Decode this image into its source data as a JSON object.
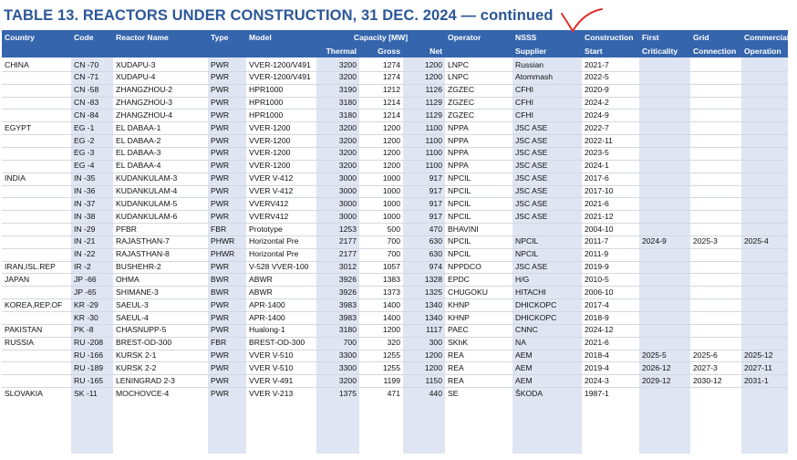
{
  "title": "TABLE 13. REACTORS UNDER CONSTRUCTION, 31 DEC. 2024 — continued",
  "table": {
    "header_top": [
      "Country",
      "Code",
      "Reactor Name",
      "Type",
      "Model",
      "Capacity [MW]",
      "Operator",
      "NSSS",
      "Construction",
      "First",
      "Grid",
      "Commercial"
    ],
    "header_bottom": [
      "Thermal",
      "Gross",
      "Net",
      "Supplier",
      "Start",
      "Criticality",
      "Connection",
      "Operation"
    ],
    "rows": [
      [
        "CHINA",
        "CN -70",
        "XUDAPU-3",
        "PWR",
        "VVER-1200/V491",
        3200,
        1274,
        1200,
        "LNPC",
        "Russian",
        "2021-7",
        null,
        null,
        null
      ],
      [
        null,
        "CN -71",
        "XUDAPU-4",
        "PWR",
        "VVER-1200/V491",
        3200,
        1274,
        1200,
        "LNPC",
        "Atommash",
        "2022-5",
        null,
        null,
        null
      ],
      [
        null,
        "CN -58",
        "ZHANGZHOU-2",
        "PWR",
        "HPR1000",
        3190,
        1212,
        1126,
        "ZGZEC",
        "CFHI",
        "2020-9",
        null,
        null,
        null
      ],
      [
        null,
        "CN -83",
        "ZHANGZHOU-3",
        "PWR",
        "HPR1000",
        3180,
        1214,
        1129,
        "ZGZEC",
        "CFHI",
        "2024-2",
        null,
        null,
        null
      ],
      [
        null,
        "CN -84",
        "ZHANGZHOU-4",
        "PWR",
        "HPR1000",
        3180,
        1214,
        1129,
        "ZGZEC",
        "CFHI",
        "2024-9",
        null,
        null,
        null
      ],
      [
        "EGYPT",
        "EG -1",
        "EL DABAA-1",
        "PWR",
        "VVER-1200",
        3200,
        1200,
        1100,
        "NPPA",
        "JSC ASE",
        "2022-7",
        null,
        null,
        null
      ],
      [
        null,
        "EG -2",
        "EL DABAA-2",
        "PWR",
        "VVER-1200",
        3200,
        1200,
        1100,
        "NPPA",
        "JSC ASE",
        "2022-11",
        null,
        null,
        null
      ],
      [
        null,
        "EG -3",
        "EL DABAA-3",
        "PWR",
        "VVER-1200",
        3200,
        1200,
        1100,
        "NPPA",
        "JSC ASE",
        "2023-5",
        null,
        null,
        null
      ],
      [
        null,
        "EG -4",
        "EL DABAA-4",
        "PWR",
        "VVER-1200",
        3200,
        1200,
        1100,
        "NPPA",
        "JSC ASE",
        "2024-1",
        null,
        null,
        null
      ],
      [
        "INDIA",
        "IN -35",
        "KUDANKULAM-3",
        "PWR",
        "VVER V-412",
        3000,
        1000,
        917,
        "NPCIL",
        "JSC ASE",
        "2017-6",
        null,
        null,
        null
      ],
      [
        null,
        "IN -36",
        "KUDANKULAM-4",
        "PWR",
        "VVER V-412",
        3000,
        1000,
        917,
        "NPCIL",
        "JSC ASE",
        "2017-10",
        null,
        null,
        null
      ],
      [
        null,
        "IN -37",
        "KUDANKULAM-5",
        "PWR",
        "VVERV412",
        3000,
        1000,
        917,
        "NPCIL",
        "JSC ASE",
        "2021-6",
        null,
        null,
        null
      ],
      [
        null,
        "IN -38",
        "KUDANKULAM-6",
        "PWR",
        "VVERV412",
        3000,
        1000,
        917,
        "NPCIL",
        "JSC ASE",
        "2021-12",
        null,
        null,
        null
      ],
      [
        null,
        "IN -29",
        "PFBR",
        "FBR",
        "Prototype",
        1253,
        500,
        470,
        "BHAVINI",
        null,
        "2004-10",
        null,
        null,
        null
      ],
      [
        null,
        "IN -21",
        "RAJASTHAN-7",
        "PHWR",
        "Horizontal Pre",
        2177,
        700,
        630,
        "NPCIL",
        "NPCIL",
        "2011-7",
        "2024-9",
        "2025-3",
        "2025-4"
      ],
      [
        null,
        "IN -22",
        "RAJASTHAN-8",
        "PHWR",
        "Horizontal Pre",
        2177,
        700,
        630,
        "NPCIL",
        "NPCIL",
        "2011-9",
        null,
        null,
        null
      ],
      [
        "IRAN,ISL.REP",
        "IR -2",
        "BUSHEHR-2",
        "PWR",
        "V-528 VVER-100",
        3012,
        1057,
        974,
        "NPPDCO",
        "JSC ASE",
        "2019-9",
        null,
        null,
        null
      ],
      [
        "JAPAN",
        "JP -66",
        "OHMA",
        "BWR",
        "ABWR",
        3926,
        1383,
        1328,
        "EPDC",
        "H/G",
        "2010-5",
        null,
        null,
        null
      ],
      [
        null,
        "JP -65",
        "SHIMANE-3",
        "BWR",
        "ABWR",
        3926,
        1373,
        1325,
        "CHUGOKU",
        "HITACHI",
        "2006-10",
        null,
        null,
        null
      ],
      [
        "KOREA,REP.OF",
        "KR -29",
        "SAEUL-3",
        "PWR",
        "APR-1400",
        3983,
        1400,
        1340,
        "KHNP",
        "DHICKOPC",
        "2017-4",
        null,
        null,
        null
      ],
      [
        null,
        "KR -30",
        "SAEUL-4",
        "PWR",
        "APR-1400",
        3983,
        1400,
        1340,
        "KHNP",
        "DHICKOPC",
        "2018-9",
        null,
        null,
        null
      ],
      [
        "PAKISTAN",
        "PK -8",
        "CHASNUPP-5",
        "PWR",
        "Hualong-1",
        3180,
        1200,
        1117,
        "PAEC",
        "CNNC",
        "2024-12",
        null,
        null,
        null
      ],
      [
        "RUSSIA",
        "RU -208",
        "BREST-OD-300",
        "FBR",
        "BREST-OD-300",
        700,
        320,
        300,
        "SKhK",
        "NA",
        "2021-6",
        null,
        null,
        null
      ],
      [
        null,
        "RU -166",
        "KURSK 2-1",
        "PWR",
        "VVER V-510",
        3300,
        1255,
        1200,
        "REA",
        "AEM",
        "2018-4",
        "2025-5",
        "2025-6",
        "2025-12"
      ],
      [
        null,
        "RU -189",
        "KURSK 2-2",
        "PWR",
        "VVER V-510",
        3300,
        1255,
        1200,
        "REA",
        "AEM",
        "2019-4",
        "2026-12",
        "2027-3",
        "2027-11"
      ],
      [
        null,
        "RU -165",
        "LENINGRAD 2-3",
        "PWR",
        "VVER V-491",
        3200,
        1199,
        1150,
        "REA",
        "AEM",
        "2024-3",
        "2029-12",
        "2030-12",
        "2031-1"
      ],
      [
        "SLOVAKIA",
        "SK -11",
        "MOCHOVCE-4",
        "PWR",
        "VVER V-213",
        1375,
        471,
        440,
        "SE",
        "ŠKODA",
        "1987-1",
        null,
        null,
        null
      ]
    ]
  }
}
